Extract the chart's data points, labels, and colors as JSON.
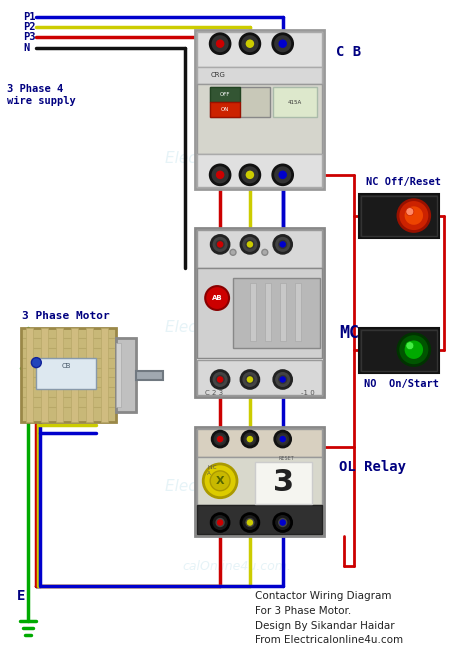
{
  "title": "Contactor Wiring Diagram\nFor 3 Phase Motor.\nDesign By Sikandar Haidar\nFrom Electricalonline4u.com",
  "background_color": "#ffffff",
  "labels": {
    "p1": "P1",
    "p2": "P2",
    "p3": "P3",
    "n": "N",
    "supply": "3 Phase 4\nwire supply",
    "motor": "3 Phase Motor",
    "cb": "C B",
    "mc": "MC",
    "ol": "OL Relay",
    "nc": "NC Off/Reset",
    "no": "NO  On/Start",
    "e": "E"
  },
  "wire_colors": {
    "red": "#cc0000",
    "yellow": "#cccc00",
    "blue": "#0000cc",
    "black": "#111111",
    "green": "#00aa00"
  },
  "wm_color": "#add8e6",
  "wm_alpha": 0.3,
  "label_color": "#000080",
  "title_color": "#222222"
}
